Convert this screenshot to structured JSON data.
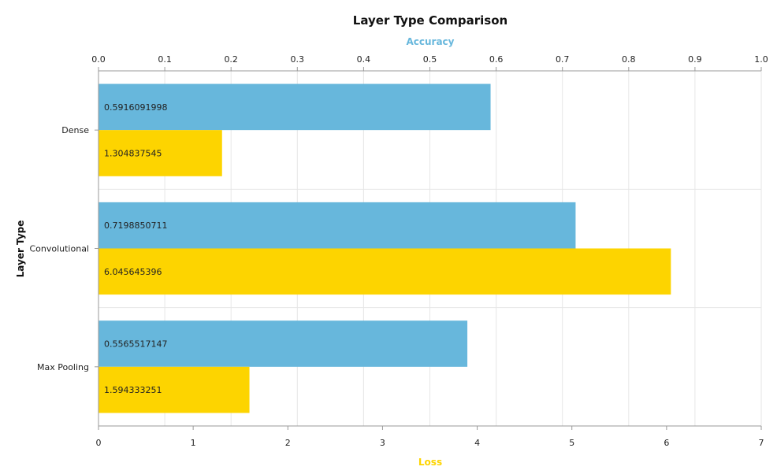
{
  "colors": {
    "accuracy": "#67b7dc",
    "loss": "#fdd400",
    "grid": "#e6e6e6",
    "axis": "#999999"
  },
  "chart_data": {
    "type": "bar",
    "orientation": "horizontal",
    "title": "Layer Type Comparison",
    "ylabel": "Layer Type",
    "categories": [
      "Dense",
      "Convolutional",
      "Max Pooling"
    ],
    "series": [
      {
        "name": "Accuracy",
        "axis": "top",
        "values": [
          0.5916091998,
          0.7198850711,
          0.5565517147
        ],
        "labels": [
          "0.5916091998",
          "0.7198850711",
          "0.5565517147"
        ]
      },
      {
        "name": "Loss",
        "axis": "bottom",
        "values": [
          1.304837545,
          6.045645396,
          1.594333251
        ],
        "labels": [
          "1.304837545",
          "6.045645396",
          "1.594333251"
        ]
      }
    ],
    "top_axis": {
      "label": "Accuracy",
      "range": [
        0,
        1
      ],
      "ticks": [
        "0.0",
        "0.1",
        "0.2",
        "0.3",
        "0.4",
        "0.5",
        "0.6",
        "0.7",
        "0.8",
        "0.9",
        "1.0"
      ]
    },
    "bottom_axis": {
      "label": "Loss",
      "range": [
        0,
        7
      ],
      "ticks": [
        "0",
        "1",
        "2",
        "3",
        "4",
        "5",
        "6",
        "7"
      ]
    },
    "grid": true
  }
}
